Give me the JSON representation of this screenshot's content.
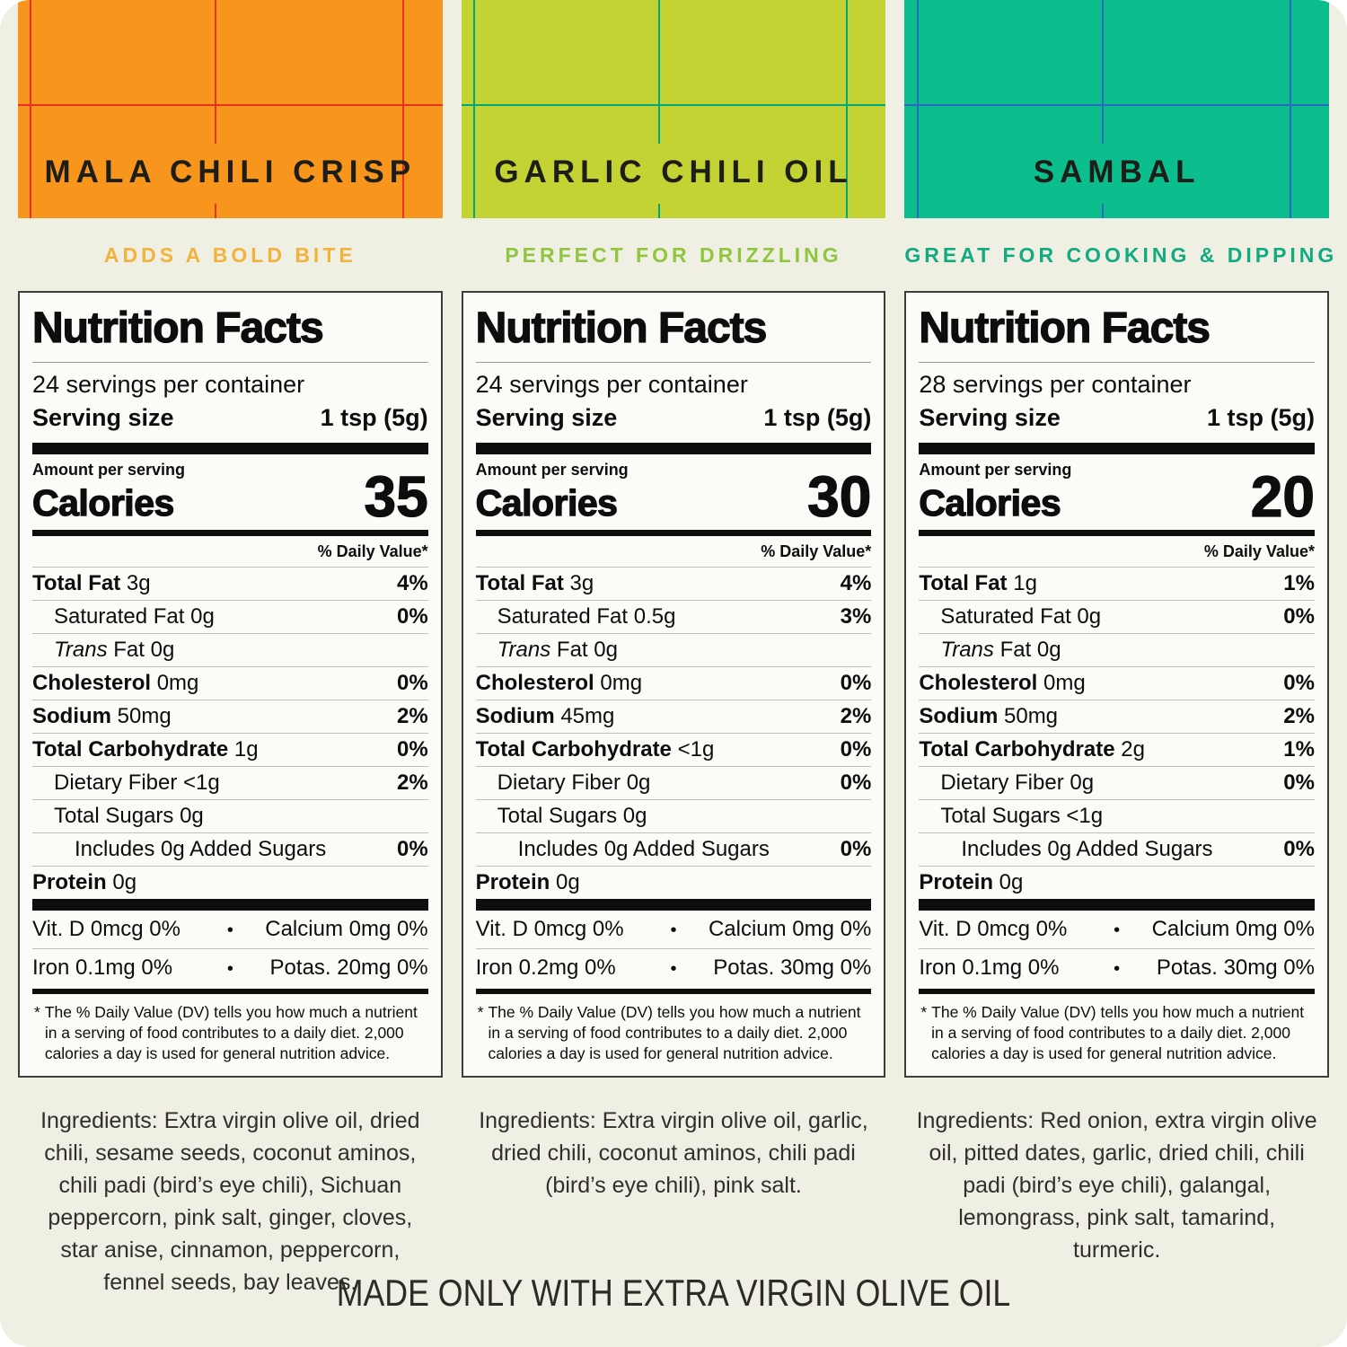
{
  "banner": "MADE ONLY WITH EXTRA VIRGIN OLIVE OIL",
  "page_background": "#F0EFE4",
  "footnote_marker": "*",
  "micro_separator": "•",
  "products": [
    {
      "name": "MALA CHILI CRISP",
      "tagline": "ADDS A BOLD BITE",
      "colors": {
        "block": "#F8951C",
        "grid": "#E93223",
        "tagline": "#F1B33C"
      },
      "nutrition": {
        "title": "Nutrition Facts",
        "servings_per_container": "24 servings per container",
        "serving_size_label": "Serving size",
        "serving_size_value": "1 tsp (5g)",
        "amount_per_serving": "Amount per serving",
        "calories_label": "Calories",
        "calories_value": "35",
        "daily_value_header": "% Daily Value*",
        "rows": [
          {
            "label": "Total Fat",
            "amount": "3g",
            "dv": "4%",
            "bold": true,
            "indent": 0
          },
          {
            "label": "Saturated Fat",
            "amount": "0g",
            "dv": "0%",
            "indent": 1
          },
          {
            "label": "Trans Fat",
            "amount": "0g",
            "dv": "",
            "indent": 1,
            "italic": true
          },
          {
            "label": "Cholesterol",
            "amount": "0mg",
            "dv": "0%",
            "bold": true,
            "indent": 0
          },
          {
            "label": "Sodium",
            "amount": "50mg",
            "dv": "2%",
            "bold": true,
            "indent": 0
          },
          {
            "label": "Total Carbohydrate",
            "amount": "1g",
            "dv": "0%",
            "bold": true,
            "indent": 0
          },
          {
            "label": "Dietary Fiber",
            "amount": "<1g",
            "dv": "2%",
            "indent": 1
          },
          {
            "label": "Total Sugars",
            "amount": "0g",
            "dv": "",
            "indent": 1
          },
          {
            "label": "Includes 0g Added Sugars",
            "amount": "",
            "dv": "0%",
            "indent": 2
          },
          {
            "label": "Protein",
            "amount": "0g",
            "dv": "",
            "bold": true,
            "indent": 0
          }
        ],
        "micros": [
          {
            "left": "Vit. D 0mcg 0%",
            "right": "Calcium 0mg 0%"
          },
          {
            "left": "Iron 0.1mg 0%",
            "right": "Potas. 20mg 0%"
          }
        ],
        "footnote": "The % Daily Value (DV) tells you how much a nutrient in a serving of food contributes to a daily diet. 2,000 calories a day is used for general nutrition advice."
      },
      "ingredients": "Ingredients: Extra virgin olive oil, dried chili, sesame seeds, coconut aminos, chili padi (bird’s eye chili), Sichuan peppercorn, pink salt, ginger, cloves, star anise, cinnamon, peppercorn, fennel seeds, bay leaves."
    },
    {
      "name": "GARLIC CHILI OIL",
      "tagline": "PERFECT FOR DRIZZLING",
      "colors": {
        "block": "#C4D334",
        "grid": "#00A87D",
        "tagline": "#90C53F"
      },
      "nutrition": {
        "title": "Nutrition Facts",
        "servings_per_container": "24 servings per container",
        "serving_size_label": "Serving size",
        "serving_size_value": "1 tsp (5g)",
        "amount_per_serving": "Amount per serving",
        "calories_label": "Calories",
        "calories_value": "30",
        "daily_value_header": "% Daily Value*",
        "rows": [
          {
            "label": "Total Fat",
            "amount": "3g",
            "dv": "4%",
            "bold": true,
            "indent": 0
          },
          {
            "label": "Saturated Fat",
            "amount": "0.5g",
            "dv": "3%",
            "indent": 1
          },
          {
            "label": "Trans Fat",
            "amount": "0g",
            "dv": "",
            "indent": 1,
            "italic": true
          },
          {
            "label": "Cholesterol",
            "amount": "0mg",
            "dv": "0%",
            "bold": true,
            "indent": 0
          },
          {
            "label": "Sodium",
            "amount": "45mg",
            "dv": "2%",
            "bold": true,
            "indent": 0
          },
          {
            "label": "Total Carbohydrate",
            "amount": "<1g",
            "dv": "0%",
            "bold": true,
            "indent": 0
          },
          {
            "label": "Dietary Fiber",
            "amount": "0g",
            "dv": "0%",
            "indent": 1
          },
          {
            "label": "Total Sugars",
            "amount": "0g",
            "dv": "",
            "indent": 1
          },
          {
            "label": "Includes 0g Added Sugars",
            "amount": "",
            "dv": "0%",
            "indent": 2
          },
          {
            "label": "Protein",
            "amount": "0g",
            "dv": "",
            "bold": true,
            "indent": 0
          }
        ],
        "micros": [
          {
            "left": "Vit. D 0mcg 0%",
            "right": "Calcium 0mg 0%"
          },
          {
            "left": "Iron 0.2mg 0%",
            "right": "Potas. 30mg 0%"
          }
        ],
        "footnote": "The % Daily Value (DV) tells you how much a nutrient in a serving of food contributes to a daily diet. 2,000 calories a day is used for general nutrition advice."
      },
      "ingredients": "Ingredients: Extra virgin olive oil, garlic, dried chili, coconut aminos, chili padi (bird’s eye chili), pink salt."
    },
    {
      "name": "SAMBAL",
      "tagline": "GREAT FOR COOKING & DIPPING",
      "colors": {
        "block": "#0CBE8D",
        "grid": "#2A69C4",
        "tagline": "#12AA80"
      },
      "nutrition": {
        "title": "Nutrition Facts",
        "servings_per_container": "28 servings per container",
        "serving_size_label": "Serving size",
        "serving_size_value": "1 tsp (5g)",
        "amount_per_serving": "Amount per serving",
        "calories_label": "Calories",
        "calories_value": "20",
        "daily_value_header": "% Daily Value*",
        "rows": [
          {
            "label": "Total Fat",
            "amount": "1g",
            "dv": "1%",
            "bold": true,
            "indent": 0
          },
          {
            "label": "Saturated Fat",
            "amount": "0g",
            "dv": "0%",
            "indent": 1
          },
          {
            "label": "Trans Fat",
            "amount": "0g",
            "dv": "",
            "indent": 1,
            "italic": true
          },
          {
            "label": "Cholesterol",
            "amount": "0mg",
            "dv": "0%",
            "bold": true,
            "indent": 0
          },
          {
            "label": "Sodium",
            "amount": "50mg",
            "dv": "2%",
            "bold": true,
            "indent": 0
          },
          {
            "label": "Total Carbohydrate",
            "amount": "2g",
            "dv": "1%",
            "bold": true,
            "indent": 0
          },
          {
            "label": "Dietary Fiber",
            "amount": "0g",
            "dv": "0%",
            "indent": 1
          },
          {
            "label": "Total Sugars",
            "amount": "<1g",
            "dv": "",
            "indent": 1
          },
          {
            "label": "Includes 0g Added Sugars",
            "amount": "",
            "dv": "0%",
            "indent": 2
          },
          {
            "label": "Protein",
            "amount": "0g",
            "dv": "",
            "bold": true,
            "indent": 0
          }
        ],
        "micros": [
          {
            "left": "Vit. D 0mcg 0%",
            "right": "Calcium 0mg 0%"
          },
          {
            "left": "Iron 0.1mg 0%",
            "right": "Potas. 30mg 0%"
          }
        ],
        "footnote": "The % Daily Value (DV) tells you how much a nutrient in a serving of food contributes to a daily diet. 2,000 calories a day is used for general nutrition advice."
      },
      "ingredients": "Ingredients: Red onion, extra virgin olive oil, pitted dates, garlic, dried chili, chili padi (bird’s eye chili), galangal, lemongrass, pink salt, tamarind, turmeric."
    }
  ]
}
